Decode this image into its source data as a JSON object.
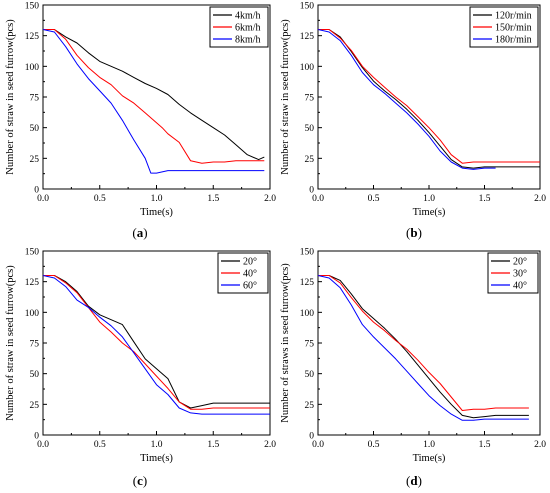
{
  "chart_data": [
    {
      "type": "line",
      "panel": "a",
      "panel_label": "(a)",
      "xlabel": "Time(s)",
      "ylabel": "Number of straw in seed furrow(pcs)",
      "xlim": [
        0.0,
        2.0
      ],
      "ylim": [
        0,
        150
      ],
      "xticks": [
        "0.0",
        "0.5",
        "1.0",
        "1.5",
        "2.0"
      ],
      "yticks": [
        "0",
        "25",
        "50",
        "75",
        "100",
        "125",
        "150"
      ],
      "legend_position": "top-right",
      "series": [
        {
          "name": "4km/h",
          "color": "#000000",
          "x": [
            0,
            0.1,
            0.2,
            0.3,
            0.4,
            0.5,
            0.6,
            0.7,
            0.8,
            0.9,
            1.0,
            1.1,
            1.2,
            1.3,
            1.4,
            1.5,
            1.6,
            1.7,
            1.8,
            1.9,
            1.95
          ],
          "y": [
            130,
            130,
            124,
            119,
            111,
            104,
            100,
            96,
            91,
            86,
            82,
            77,
            69,
            62,
            56,
            50,
            44,
            36,
            28,
            24,
            26
          ]
        },
        {
          "name": "6km/h",
          "color": "#ff0000",
          "x": [
            0,
            0.1,
            0.2,
            0.3,
            0.4,
            0.5,
            0.6,
            0.7,
            0.8,
            0.9,
            1.0,
            1.05,
            1.1,
            1.2,
            1.3,
            1.4,
            1.5,
            1.6,
            1.7,
            1.8,
            1.9,
            1.95
          ],
          "y": [
            130,
            130,
            122,
            109,
            99,
            91,
            85,
            76,
            70,
            62,
            54,
            50,
            45,
            38,
            23,
            21,
            22,
            22,
            23,
            23,
            23,
            23
          ]
        },
        {
          "name": "8km/h",
          "color": "#0000ff",
          "x": [
            0,
            0.1,
            0.2,
            0.3,
            0.4,
            0.5,
            0.6,
            0.7,
            0.8,
            0.9,
            0.95,
            1.0,
            1.1,
            1.2,
            1.3,
            1.4,
            1.5,
            1.6,
            1.7,
            1.8,
            1.9,
            1.95
          ],
          "y": [
            130,
            128,
            116,
            102,
            90,
            80,
            70,
            56,
            40,
            25,
            13,
            13,
            15,
            15,
            15,
            15,
            15,
            15,
            15,
            15,
            15,
            15
          ]
        }
      ]
    },
    {
      "type": "line",
      "panel": "b",
      "panel_label": "(b)",
      "xlabel": "Time(s)",
      "ylabel": "Number of straw in seed furrow(pcs)",
      "xlim": [
        0.0,
        2.0
      ],
      "ylim": [
        0,
        150
      ],
      "xticks": [
        "0.0",
        "0.5",
        "1.0",
        "1.5",
        "2.0"
      ],
      "yticks": [
        "0",
        "25",
        "50",
        "75",
        "100",
        "125",
        "150"
      ],
      "legend_position": "top-right",
      "series": [
        {
          "name": "120r/min",
          "color": "#000000",
          "x": [
            0,
            0.1,
            0.2,
            0.3,
            0.4,
            0.5,
            0.6,
            0.7,
            0.8,
            0.9,
            1.0,
            1.1,
            1.2,
            1.3,
            1.4,
            1.5,
            1.6,
            1.7,
            1.8,
            1.9,
            2.0
          ],
          "y": [
            130,
            130,
            124,
            112,
            99,
            88,
            80,
            73,
            65,
            56,
            46,
            35,
            24,
            18,
            17,
            18,
            18,
            18,
            18,
            18,
            18
          ]
        },
        {
          "name": "150r/min",
          "color": "#ff0000",
          "x": [
            0,
            0.1,
            0.2,
            0.3,
            0.4,
            0.5,
            0.6,
            0.7,
            0.8,
            0.9,
            1.0,
            1.1,
            1.2,
            1.3,
            1.4,
            1.5,
            1.6,
            1.7,
            1.8,
            1.9,
            2.0
          ],
          "y": [
            130,
            130,
            123,
            113,
            100,
            91,
            83,
            75,
            68,
            59,
            50,
            40,
            28,
            21,
            22,
            22,
            22,
            22,
            22,
            22,
            22
          ]
        },
        {
          "name": "180r/min",
          "color": "#0000ff",
          "x": [
            0,
            0.1,
            0.2,
            0.3,
            0.4,
            0.5,
            0.6,
            0.7,
            0.8,
            0.9,
            1.0,
            1.1,
            1.2,
            1.3,
            1.4,
            1.5,
            1.6
          ],
          "y": [
            130,
            128,
            121,
            109,
            95,
            85,
            78,
            70,
            62,
            53,
            43,
            31,
            22,
            17,
            16,
            17,
            17
          ]
        }
      ]
    },
    {
      "type": "line",
      "panel": "c",
      "panel_label": "(c)",
      "xlabel": "Time(s)",
      "ylabel": "Number of straw in seed furrow(pcs)",
      "xlim": [
        0.0,
        2.0
      ],
      "ylim": [
        0,
        150
      ],
      "xticks": [
        "0.0",
        "0.5",
        "1.0",
        "1.5",
        "2.0"
      ],
      "yticks": [
        "0",
        "25",
        "50",
        "75",
        "100",
        "125",
        "150"
      ],
      "legend_position": "top-right",
      "series": [
        {
          "name": "20°",
          "color": "#000000",
          "x": [
            0,
            0.1,
            0.2,
            0.3,
            0.4,
            0.5,
            0.6,
            0.7,
            0.8,
            0.9,
            1.0,
            1.1,
            1.2,
            1.3,
            1.4,
            1.5,
            1.6,
            1.7,
            1.8,
            1.9,
            2.0
          ],
          "y": [
            130,
            130,
            125,
            117,
            105,
            98,
            94,
            90,
            76,
            62,
            54,
            46,
            27,
            22,
            24,
            26,
            26,
            26,
            26,
            26,
            26
          ]
        },
        {
          "name": "40°",
          "color": "#ff0000",
          "x": [
            0,
            0.1,
            0.2,
            0.3,
            0.4,
            0.5,
            0.6,
            0.7,
            0.8,
            0.9,
            1.0,
            1.1,
            1.2,
            1.3,
            1.4,
            1.5,
            1.6,
            1.7,
            1.8,
            1.9,
            2.0
          ],
          "y": [
            130,
            130,
            124,
            116,
            104,
            92,
            84,
            75,
            68,
            58,
            48,
            38,
            27,
            21,
            21,
            22,
            22,
            22,
            22,
            22,
            22
          ]
        },
        {
          "name": "60°",
          "color": "#0000ff",
          "x": [
            0,
            0.1,
            0.2,
            0.3,
            0.4,
            0.5,
            0.6,
            0.7,
            0.8,
            0.9,
            1.0,
            1.1,
            1.2,
            1.3,
            1.4,
            1.5,
            1.6,
            1.7,
            1.8,
            1.9,
            2.0
          ],
          "y": [
            130,
            128,
            121,
            110,
            104,
            96,
            89,
            80,
            67,
            54,
            41,
            33,
            22,
            18,
            17,
            17,
            17,
            17,
            17,
            17,
            17
          ]
        }
      ]
    },
    {
      "type": "line",
      "panel": "d",
      "panel_label": "(d)",
      "xlabel": "Time(s)",
      "ylabel": "Number of straws in seed furrow(pcs)",
      "xlim": [
        0.0,
        2.0
      ],
      "ylim": [
        0,
        150
      ],
      "xticks": [
        "0.0",
        "0.5",
        "1.0",
        "1.5",
        "2.0"
      ],
      "yticks": [
        "0",
        "25",
        "50",
        "75",
        "100",
        "125",
        "150"
      ],
      "legend_position": "top-right",
      "series": [
        {
          "name": "20°",
          "color": "#000000",
          "x": [
            0,
            0.1,
            0.2,
            0.3,
            0.4,
            0.5,
            0.6,
            0.7,
            0.8,
            0.9,
            1.0,
            1.1,
            1.2,
            1.3,
            1.4,
            1.5,
            1.6,
            1.7,
            1.8,
            1.9
          ],
          "y": [
            130,
            130,
            126,
            115,
            103,
            95,
            87,
            78,
            68,
            57,
            46,
            35,
            25,
            16,
            14,
            15,
            16,
            16,
            16,
            16
          ]
        },
        {
          "name": "30°",
          "color": "#ff0000",
          "x": [
            0,
            0.1,
            0.2,
            0.3,
            0.4,
            0.5,
            0.6,
            0.7,
            0.8,
            0.9,
            1.0,
            1.1,
            1.2,
            1.3,
            1.4,
            1.5,
            1.6,
            1.7,
            1.8,
            1.9
          ],
          "y": [
            130,
            130,
            124,
            112,
            101,
            92,
            85,
            77,
            70,
            61,
            51,
            42,
            31,
            20,
            21,
            21,
            22,
            22,
            22,
            22
          ]
        },
        {
          "name": "40°",
          "color": "#0000ff",
          "x": [
            0,
            0.1,
            0.2,
            0.3,
            0.4,
            0.5,
            0.6,
            0.7,
            0.8,
            0.9,
            1.0,
            1.1,
            1.2,
            1.3,
            1.4,
            1.5,
            1.6,
            1.7,
            1.8,
            1.9
          ],
          "y": [
            130,
            128,
            120,
            106,
            90,
            80,
            71,
            62,
            52,
            42,
            32,
            24,
            17,
            12,
            12,
            13,
            13,
            13,
            13,
            13
          ]
        }
      ]
    }
  ]
}
